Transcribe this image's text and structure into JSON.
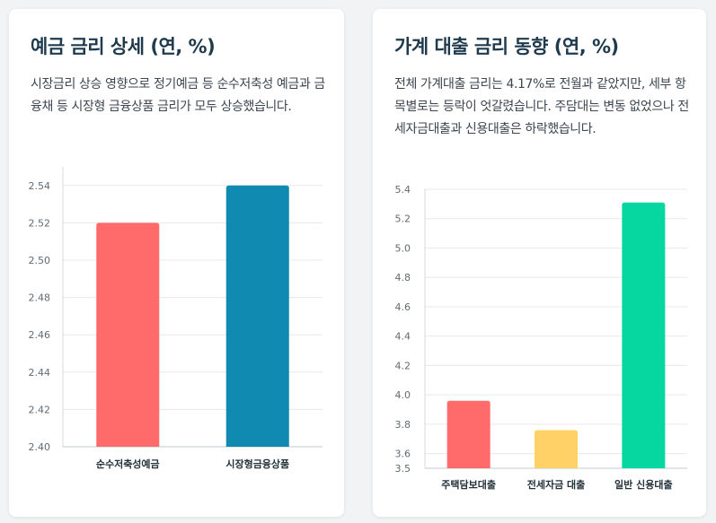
{
  "left_card": {
    "title": "예금 금리 상세 (연, %)",
    "description": "시장금리 상승 영향으로 정기예금 등 순수저축성 예금과 금융채 등 시장형 금융상품 금리가 모두 상승했습니다."
  },
  "right_card": {
    "title": "가계 대출 금리 동향 (연, %)",
    "description": "전체 가계대출 금리는 4.17%로 전월과 같았지만, 세부 항목별로는 등락이 엇갈렸습니다. 주담대는 변동 없었으나 전세자금대출과 신용대출은 하락했습니다."
  },
  "chart_data": [
    {
      "type": "bar",
      "categories": [
        "순수저축성예금",
        "시장형금융상품"
      ],
      "values": [
        2.52,
        2.54
      ],
      "colors": [
        "#ff6b6b",
        "#118ab2"
      ],
      "yticks": [
        2.4,
        2.42,
        2.44,
        2.46,
        2.48,
        2.5,
        2.52,
        2.54
      ],
      "ylim": [
        2.4,
        2.55
      ],
      "grid": true
    },
    {
      "type": "bar",
      "categories": [
        "주택담보대출",
        "전세자금 대출",
        "일반 신용대출"
      ],
      "values": [
        3.96,
        3.76,
        5.31
      ],
      "colors": [
        "#ff6b6b",
        "#ffd166",
        "#06d6a0"
      ],
      "yticks": [
        3.5,
        3.6,
        3.8,
        4.0,
        4.2,
        4.4,
        4.6,
        4.8,
        5.0,
        5.2,
        5.4
      ],
      "ylim": [
        3.5,
        5.4
      ],
      "grid": true
    }
  ]
}
